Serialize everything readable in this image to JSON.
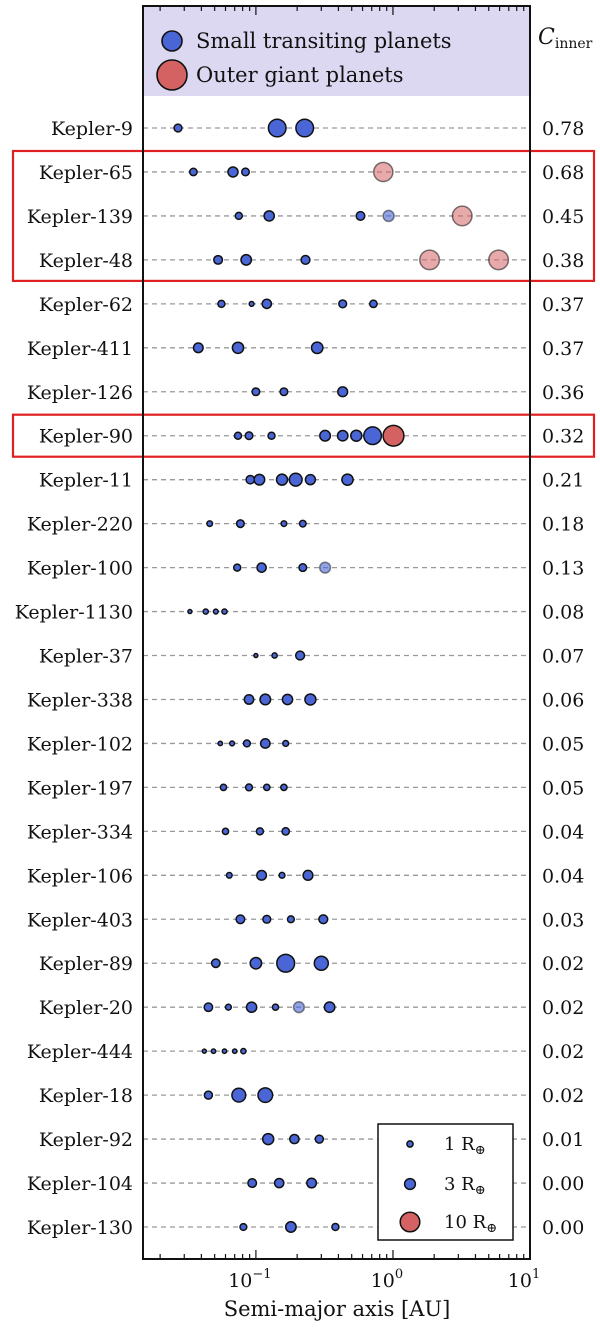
{
  "chart_data": {
    "type": "scatter",
    "xlabel": "Semi-major axis [AU]",
    "x_scale": "log",
    "xlim": [
      0.015,
      10
    ],
    "x_ticks": [
      {
        "value": 0.1,
        "base": "10",
        "exp": "−1"
      },
      {
        "value": 1,
        "base": "10",
        "exp": "0"
      },
      {
        "value": 10,
        "base": "10",
        "exp": "1"
      }
    ],
    "cinner_header": {
      "main": "C",
      "sub": "inner"
    },
    "colors": {
      "small": "#4a66d6",
      "giant": "#d46262",
      "highlight": "#e02020",
      "legend_bg": "#dcd8f2"
    },
    "series_legend": [
      {
        "name": "Small transiting planets",
        "kind": "small"
      },
      {
        "name": "Outer giant planets",
        "kind": "giant"
      }
    ],
    "size_legend": [
      {
        "radius": 1,
        "label": "1 R",
        "sub": "⊕"
      },
      {
        "radius": 3,
        "label": "3 R",
        "sub": "⊕"
      },
      {
        "radius": 10,
        "label": "10 R",
        "sub": "⊕"
      }
    ],
    "highlight_groups": [
      [
        "Kepler-65",
        "Kepler-48"
      ],
      [
        "Kepler-90",
        "Kepler-90"
      ]
    ],
    "systems": [
      {
        "name": "Kepler-9",
        "cinner": "0.78",
        "planets": [
          {
            "a": 0.027,
            "r": 1.6
          },
          {
            "a": 0.143,
            "r": 8.0
          },
          {
            "a": 0.227,
            "r": 8.1
          }
        ]
      },
      {
        "name": "Kepler-65",
        "cinner": "0.68",
        "planets": [
          {
            "a": 0.035,
            "r": 1.4
          },
          {
            "a": 0.068,
            "r": 2.6
          },
          {
            "a": 0.084,
            "r": 1.5
          },
          {
            "a": 0.85,
            "g": true,
            "r": 9.5
          }
        ]
      },
      {
        "name": "Kepler-139",
        "cinner": "0.45",
        "planets": [
          {
            "a": 0.075,
            "r": 1.3
          },
          {
            "a": 0.125,
            "r": 2.7
          },
          {
            "a": 0.58,
            "r": 1.9
          },
          {
            "a": 0.93,
            "f": true,
            "r": 3.2
          },
          {
            "a": 3.2,
            "g": true,
            "r": 10.0
          }
        ]
      },
      {
        "name": "Kepler-48",
        "cinner": "0.38",
        "planets": [
          {
            "a": 0.053,
            "r": 1.9
          },
          {
            "a": 0.085,
            "r": 2.8
          },
          {
            "a": 0.23,
            "r": 2.0
          },
          {
            "a": 1.85,
            "g": true,
            "r": 10.0
          },
          {
            "a": 5.9,
            "g": true,
            "r": 10.0
          }
        ]
      },
      {
        "name": "Kepler-62",
        "cinner": "0.37",
        "planets": [
          {
            "a": 0.056,
            "r": 1.3
          },
          {
            "a": 0.093,
            "r": 0.6
          },
          {
            "a": 0.12,
            "r": 2.2
          },
          {
            "a": 0.43,
            "r": 1.6
          },
          {
            "a": 0.72,
            "r": 1.4
          }
        ]
      },
      {
        "name": "Kepler-411",
        "cinner": "0.37",
        "planets": [
          {
            "a": 0.038,
            "r": 2.4
          },
          {
            "a": 0.074,
            "r": 3.3
          },
          {
            "a": 0.28,
            "r": 3.4
          }
        ]
      },
      {
        "name": "Kepler-126",
        "cinner": "0.36",
        "planets": [
          {
            "a": 0.1,
            "r": 1.5
          },
          {
            "a": 0.16,
            "r": 1.5
          },
          {
            "a": 0.43,
            "r": 2.5
          }
        ]
      },
      {
        "name": "Kepler-90",
        "cinner": "0.32",
        "planets": [
          {
            "a": 0.074,
            "r": 1.3
          },
          {
            "a": 0.089,
            "r": 1.5
          },
          {
            "a": 0.13,
            "r": 1.3
          },
          {
            "a": 0.32,
            "r": 2.9
          },
          {
            "a": 0.43,
            "r": 2.8
          },
          {
            "a": 0.54,
            "r": 3.1
          },
          {
            "a": 0.71,
            "r": 8.1
          },
          {
            "a": 1.01,
            "g": true,
            "r": 11.3
          }
        ]
      },
      {
        "name": "Kepler-11",
        "cinner": "0.21",
        "planets": [
          {
            "a": 0.091,
            "r": 1.8
          },
          {
            "a": 0.106,
            "r": 2.9
          },
          {
            "a": 0.155,
            "r": 3.1
          },
          {
            "a": 0.195,
            "r": 4.2
          },
          {
            "a": 0.25,
            "r": 2.6
          },
          {
            "a": 0.466,
            "r": 3.3
          }
        ]
      },
      {
        "name": "Kepler-220",
        "cinner": "0.18",
        "planets": [
          {
            "a": 0.046,
            "r": 0.8
          },
          {
            "a": 0.077,
            "r": 1.5
          },
          {
            "a": 0.16,
            "r": 0.8
          },
          {
            "a": 0.22,
            "r": 1.1
          }
        ]
      },
      {
        "name": "Kepler-100",
        "cinner": "0.13",
        "planets": [
          {
            "a": 0.073,
            "r": 1.3
          },
          {
            "a": 0.11,
            "r": 2.2
          },
          {
            "a": 0.22,
            "r": 1.5
          },
          {
            "a": 0.32,
            "f": true,
            "r": 3.0
          }
        ]
      },
      {
        "name": "Kepler-1130",
        "cinner": "0.08",
        "planets": [
          {
            "a": 0.033,
            "r": 0.4
          },
          {
            "a": 0.043,
            "r": 0.7
          },
          {
            "a": 0.051,
            "r": 0.6
          },
          {
            "a": 0.059,
            "r": 0.7
          }
        ]
      },
      {
        "name": "Kepler-37",
        "cinner": "0.07",
        "planets": [
          {
            "a": 0.1,
            "r": 0.4
          },
          {
            "a": 0.137,
            "r": 0.7
          },
          {
            "a": 0.21,
            "r": 2.0
          }
        ]
      },
      {
        "name": "Kepler-338",
        "cinner": "0.06",
        "planets": [
          {
            "a": 0.089,
            "r": 2.3
          },
          {
            "a": 0.117,
            "r": 2.9
          },
          {
            "a": 0.17,
            "r": 2.7
          },
          {
            "a": 0.25,
            "r": 3.2
          }
        ]
      },
      {
        "name": "Kepler-102",
        "cinner": "0.05",
        "planets": [
          {
            "a": 0.055,
            "r": 0.5
          },
          {
            "a": 0.067,
            "r": 0.6
          },
          {
            "a": 0.086,
            "r": 1.2
          },
          {
            "a": 0.117,
            "r": 2.3
          },
          {
            "a": 0.165,
            "r": 0.9
          }
        ]
      },
      {
        "name": "Kepler-197",
        "cinner": "0.05",
        "planets": [
          {
            "a": 0.058,
            "r": 1.0
          },
          {
            "a": 0.089,
            "r": 1.2
          },
          {
            "a": 0.12,
            "r": 1.0
          },
          {
            "a": 0.16,
            "r": 1.0
          }
        ]
      },
      {
        "name": "Kepler-334",
        "cinner": "0.04",
        "planets": [
          {
            "a": 0.06,
            "r": 1.0
          },
          {
            "a": 0.107,
            "r": 1.3
          },
          {
            "a": 0.165,
            "r": 1.4
          }
        ]
      },
      {
        "name": "Kepler-106",
        "cinner": "0.04",
        "planets": [
          {
            "a": 0.064,
            "r": 0.8
          },
          {
            "a": 0.11,
            "r": 2.4
          },
          {
            "a": 0.155,
            "r": 0.9
          },
          {
            "a": 0.24,
            "r": 2.5
          }
        ]
      },
      {
        "name": "Kepler-403",
        "cinner": "0.03",
        "planets": [
          {
            "a": 0.077,
            "r": 1.9
          },
          {
            "a": 0.12,
            "r": 1.6
          },
          {
            "a": 0.18,
            "r": 1.2
          },
          {
            "a": 0.31,
            "r": 2.0
          }
        ]
      },
      {
        "name": "Kepler-89",
        "cinner": "0.02",
        "planets": [
          {
            "a": 0.051,
            "r": 1.8
          },
          {
            "a": 0.1,
            "r": 3.4
          },
          {
            "a": 0.165,
            "r": 8.3
          },
          {
            "a": 0.3,
            "r": 5.1
          }
        ]
      },
      {
        "name": "Kepler-20",
        "cinner": "0.02",
        "planets": [
          {
            "a": 0.045,
            "r": 1.8
          },
          {
            "a": 0.063,
            "r": 0.9
          },
          {
            "a": 0.093,
            "r": 2.7
          },
          {
            "a": 0.139,
            "r": 1.0
          },
          {
            "a": 0.206,
            "f": true,
            "r": 3.0
          },
          {
            "a": 0.345,
            "r": 2.8
          }
        ]
      },
      {
        "name": "Kepler-444",
        "cinner": "0.02",
        "planets": [
          {
            "a": 0.042,
            "r": 0.4
          },
          {
            "a": 0.049,
            "r": 0.5
          },
          {
            "a": 0.059,
            "r": 0.5
          },
          {
            "a": 0.07,
            "r": 0.5
          },
          {
            "a": 0.081,
            "r": 0.7
          }
        ]
      },
      {
        "name": "Kepler-18",
        "cinner": "0.02",
        "planets": [
          {
            "a": 0.045,
            "r": 1.7
          },
          {
            "a": 0.075,
            "r": 5.0
          },
          {
            "a": 0.117,
            "r": 5.5
          }
        ]
      },
      {
        "name": "Kepler-92",
        "cinner": "0.01",
        "planets": [
          {
            "a": 0.123,
            "r": 3.1
          },
          {
            "a": 0.191,
            "r": 2.2
          },
          {
            "a": 0.29,
            "r": 1.7
          }
        ]
      },
      {
        "name": "Kepler-104",
        "cinner": "0.00",
        "planets": [
          {
            "a": 0.094,
            "r": 1.9
          },
          {
            "a": 0.148,
            "r": 2.2
          },
          {
            "a": 0.255,
            "r": 2.4
          }
        ]
      },
      {
        "name": "Kepler-130",
        "cinner": "0.00",
        "planets": [
          {
            "a": 0.081,
            "r": 1.2
          },
          {
            "a": 0.18,
            "r": 2.8
          },
          {
            "a": 0.38,
            "r": 1.3
          }
        ]
      }
    ]
  }
}
